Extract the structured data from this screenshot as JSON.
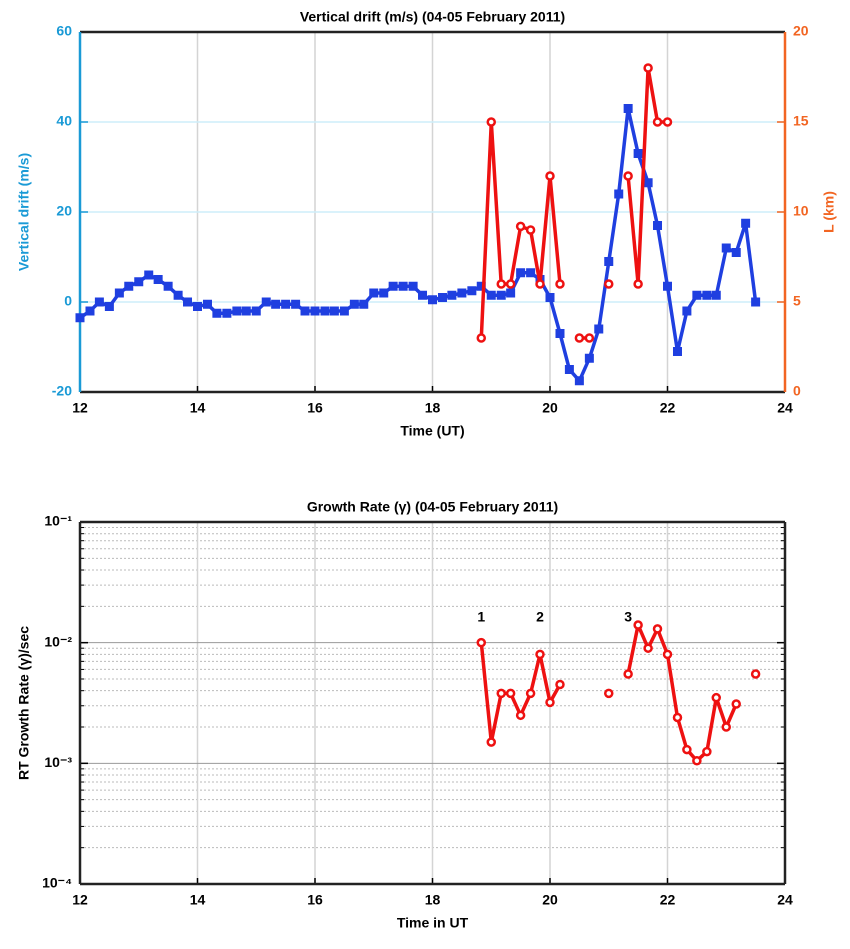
{
  "chart_data": [
    {
      "type": "line",
      "title": "Vertical drift (m/s)  (04-05 February 2011)",
      "x_label": "Time (UT)",
      "y_label": "Vertical drift (m/s)",
      "y2_label": "L (km)",
      "y_label_color": "#1a9ad6",
      "y2_label_color": "#f26522",
      "xlim": [
        12,
        24
      ],
      "xticks": [
        12,
        14,
        16,
        18,
        20,
        22,
        24
      ],
      "ylim": [
        -20,
        60
      ],
      "yticks": [
        -20,
        0,
        20,
        40,
        60
      ],
      "y2lim": [
        0,
        20
      ],
      "y2ticks": [
        0,
        5,
        10,
        15,
        20
      ],
      "grid": true,
      "log_y": false,
      "series": [
        {
          "color": "#1f3fe0",
          "marker": "square",
          "x": [
            12,
            12.17,
            12.33,
            12.5,
            12.67,
            12.83,
            13,
            13.17,
            13.33,
            13.5,
            13.67,
            13.83,
            14,
            14.17,
            14.33,
            14.5,
            14.67,
            14.83,
            15,
            15.17,
            15.33,
            15.5,
            15.67,
            15.83,
            16,
            16.17,
            16.33,
            16.5,
            16.67,
            16.83,
            17,
            17.17,
            17.33,
            17.5,
            17.67,
            17.83,
            18,
            18.17,
            18.33,
            18.5,
            18.67,
            18.83,
            19,
            19.17,
            19.33,
            19.5,
            19.67,
            19.83,
            20,
            20.17,
            20.33,
            20.5,
            20.67,
            20.83,
            21,
            21.17,
            21.33,
            21.5,
            21.67,
            21.83,
            22,
            22.17,
            22.33,
            22.5,
            22.67,
            22.83,
            23,
            23.17,
            23.33,
            23.5
          ],
          "values": [
            -3.5,
            -2,
            0,
            -1,
            2,
            3.5,
            4.5,
            6,
            5,
            3.5,
            1.5,
            0,
            -1,
            -0.5,
            -2.5,
            -2.5,
            -2,
            -2,
            -2,
            0,
            -0.5,
            -0.5,
            -0.5,
            -2,
            -2,
            -2,
            -2,
            -2,
            -0.5,
            -0.5,
            2,
            2,
            3.5,
            3.5,
            3.5,
            1.5,
            0.5,
            1,
            1.5,
            2,
            2.5,
            3.5,
            1.5,
            1.5,
            2,
            6.5,
            6.5,
            5,
            1,
            -7,
            -15,
            -17.5,
            -12.5,
            -6,
            9,
            24,
            43,
            33,
            26.5,
            17,
            3.5,
            -11,
            -2,
            1.5,
            1.5,
            1.5,
            12,
            11,
            17.5,
            0
          ]
        },
        {
          "color": "#ee1111",
          "marker": "circle",
          "axis": "y2",
          "x": [
            18.83,
            19,
            19.17,
            19.33,
            19.5,
            19.67,
            19.83,
            20,
            20.17,
            20.33,
            20.5,
            20.67,
            20.83,
            21,
            21.17,
            21.33,
            21.5,
            21.67,
            21.83,
            22
          ],
          "values": [
            3,
            15,
            6,
            6,
            9.2,
            9,
            6,
            12,
            6,
            null,
            3,
            3,
            null,
            6,
            null,
            12,
            6,
            18,
            15,
            15
          ]
        }
      ]
    },
    {
      "type": "line",
      "title": "Growth Rate (γ)  (04-05 February 2011)",
      "x_label": "Time in UT",
      "y_label": "RT Growth Rate (γ)/sec",
      "xlim": [
        12,
        24
      ],
      "xticks": [
        12,
        14,
        16,
        18,
        20,
        22,
        24
      ],
      "ylim": [
        0.0001,
        0.1
      ],
      "yticks": [
        {
          "value": 0.0001,
          "label": "10⁻⁴"
        },
        {
          "value": 0.001,
          "label": "10⁻³"
        },
        {
          "value": 0.01,
          "label": "10⁻²"
        },
        {
          "value": 0.1,
          "label": "10⁻¹"
        }
      ],
      "grid": true,
      "log_y": true,
      "minor_grid": true,
      "series": [
        {
          "color": "#ee1111",
          "marker": "circle",
          "x": [
            18.83,
            19,
            19.17,
            19.33,
            19.5,
            19.67,
            19.83,
            20,
            20.17,
            20.33,
            20.5,
            20.67,
            20.83,
            21,
            21.17,
            21.33,
            21.5,
            21.67,
            21.83,
            22,
            22.17,
            22.33,
            22.5,
            22.67,
            22.83,
            23,
            23.17,
            23.33,
            23.5
          ],
          "values": [
            0.01,
            0.0015,
            0.0038,
            0.0038,
            0.0025,
            0.0038,
            0.008,
            0.0032,
            0.0045,
            null,
            null,
            null,
            null,
            0.0038,
            null,
            0.0055,
            0.014,
            0.009,
            0.013,
            0.008,
            0.0024,
            0.0013,
            0.00105,
            0.00125,
            0.0035,
            0.002,
            0.0031,
            null,
            0.0055
          ]
        }
      ],
      "annotations": [
        {
          "text": "1",
          "x": 18.83,
          "y": 0.016
        },
        {
          "text": "2",
          "x": 19.83,
          "y": 0.016
        },
        {
          "text": "3",
          "x": 21.33,
          "y": 0.016
        }
      ]
    }
  ]
}
